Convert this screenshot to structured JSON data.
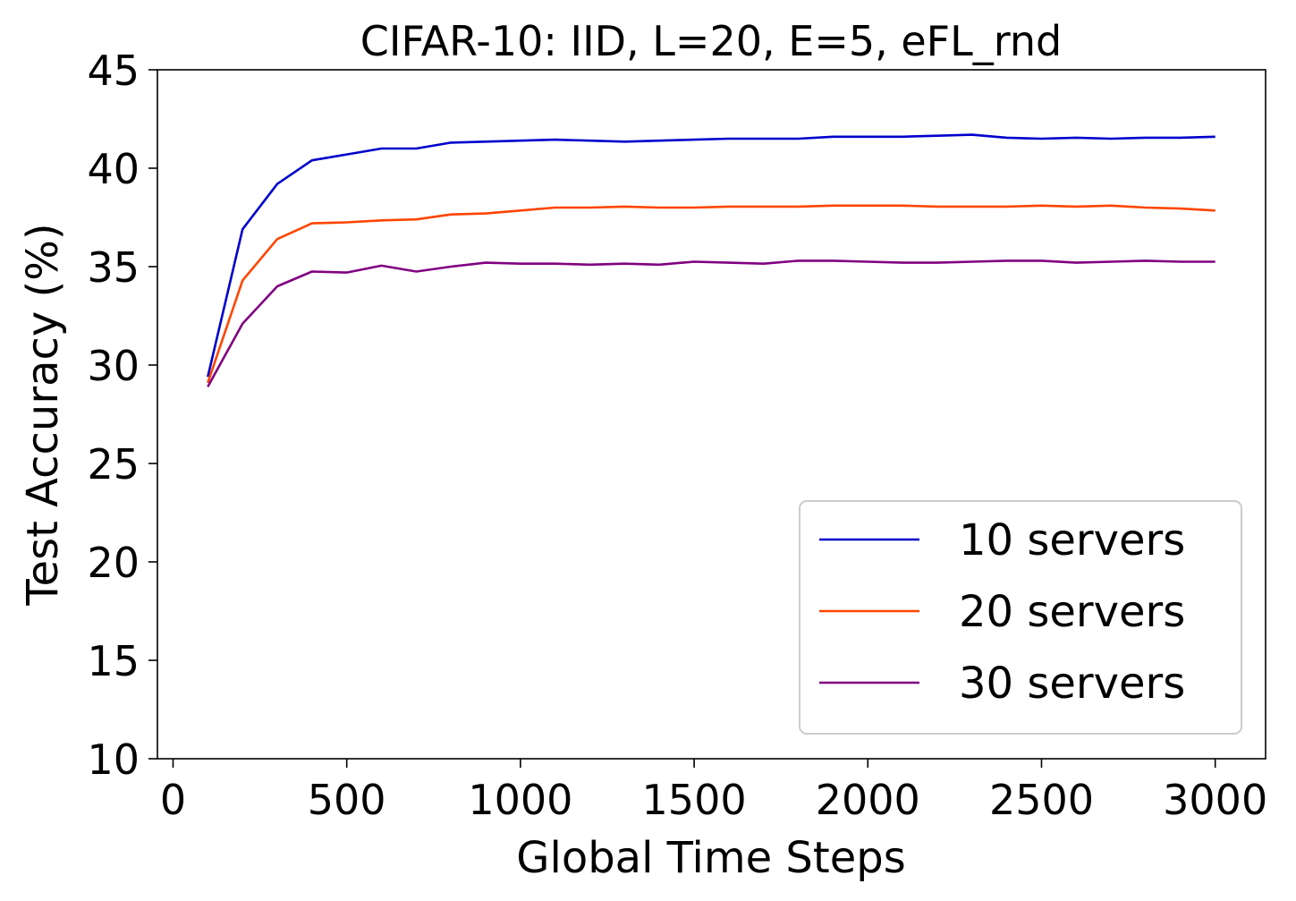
{
  "chart_data": {
    "type": "line",
    "title": "CIFAR-10: IID, L=20, E=5, eFL_rnd",
    "xlabel": "Global Time Steps",
    "ylabel": "Test Accuracy (%)",
    "xlim": [
      -45,
      3145
    ],
    "ylim": [
      10,
      45
    ],
    "xticks": [
      0,
      500,
      1000,
      1500,
      2000,
      2500,
      3000
    ],
    "yticks": [
      10,
      15,
      20,
      25,
      30,
      35,
      40,
      45
    ],
    "grid": false,
    "legend_position": "lower-right",
    "x": [
      100,
      200,
      300,
      400,
      500,
      600,
      700,
      800,
      900,
      1000,
      1100,
      1200,
      1300,
      1400,
      1500,
      1600,
      1700,
      1800,
      1900,
      2000,
      2100,
      2200,
      2300,
      2400,
      2500,
      2600,
      2700,
      2800,
      2900,
      3000
    ],
    "series": [
      {
        "name": "10 servers",
        "color": "#0000cd",
        "values": [
          29.4,
          36.9,
          39.2,
          40.4,
          40.7,
          41.0,
          41.0,
          41.3,
          41.35,
          41.4,
          41.45,
          41.4,
          41.35,
          41.4,
          41.45,
          41.5,
          41.5,
          41.5,
          41.6,
          41.6,
          41.6,
          41.65,
          41.7,
          41.55,
          41.5,
          41.55,
          41.5,
          41.55,
          41.55,
          41.6
        ]
      },
      {
        "name": "20 servers",
        "color": "#ff4500",
        "values": [
          29.1,
          34.3,
          36.4,
          37.2,
          37.25,
          37.35,
          37.4,
          37.65,
          37.7,
          37.85,
          38.0,
          38.0,
          38.05,
          38.0,
          38.0,
          38.05,
          38.05,
          38.05,
          38.1,
          38.1,
          38.1,
          38.05,
          38.05,
          38.05,
          38.1,
          38.05,
          38.1,
          38.0,
          37.95,
          37.85
        ]
      },
      {
        "name": "30 servers",
        "color": "#800080",
        "values": [
          28.9,
          32.1,
          34.0,
          34.75,
          34.7,
          35.05,
          34.75,
          35.0,
          35.2,
          35.15,
          35.15,
          35.1,
          35.15,
          35.1,
          35.25,
          35.2,
          35.15,
          35.3,
          35.3,
          35.25,
          35.2,
          35.2,
          35.25,
          35.3,
          35.3,
          35.2,
          35.25,
          35.3,
          35.25,
          35.25
        ]
      }
    ]
  }
}
